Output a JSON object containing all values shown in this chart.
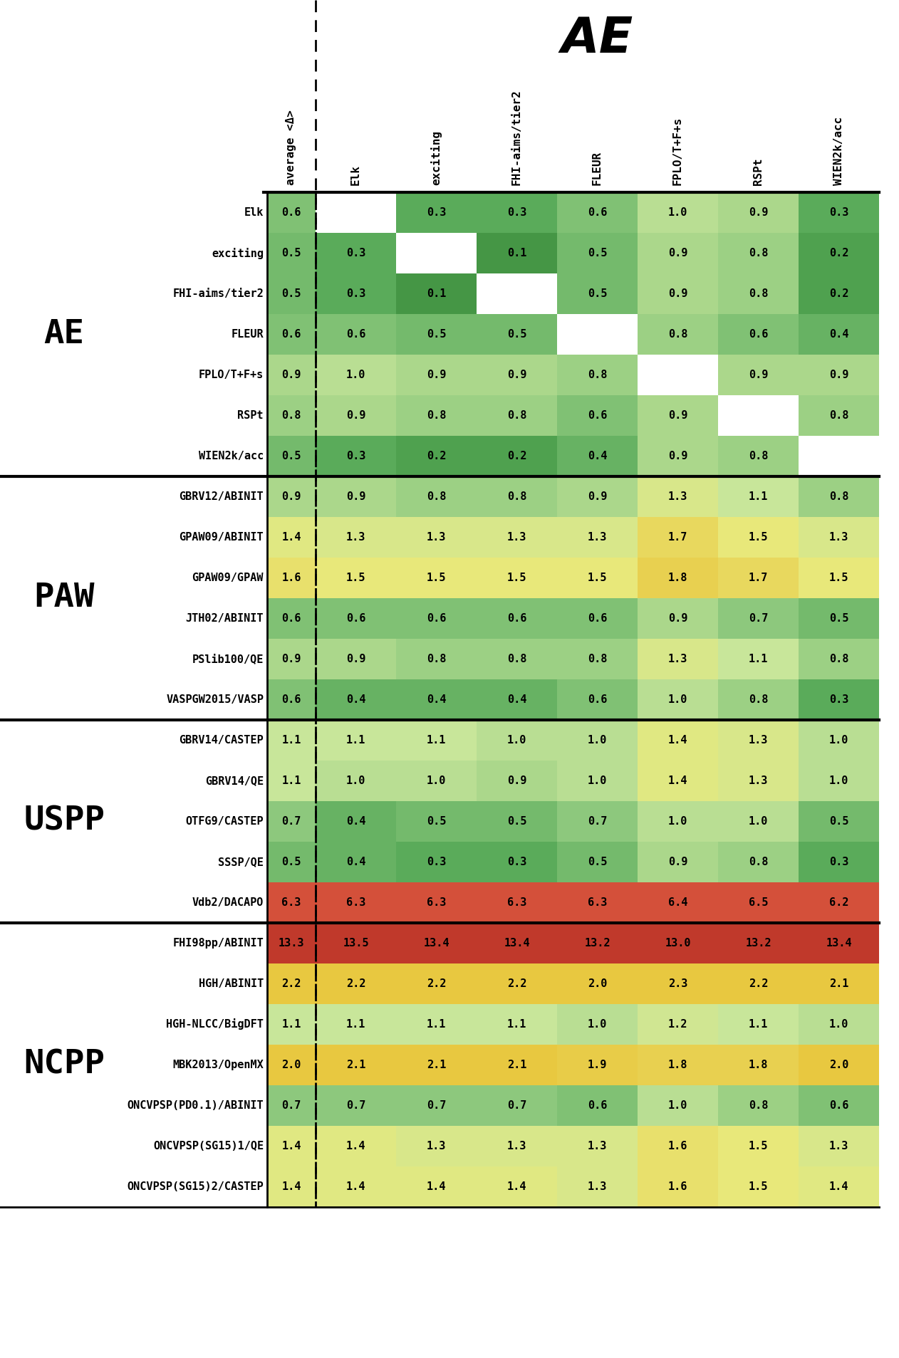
{
  "col_headers": [
    "average <Δ>",
    "Elk",
    "exciting",
    "FHI-aims/tier2",
    "FLEUR",
    "FPLO/T+F+s",
    "RSPt",
    "WIEN2k/acc"
  ],
  "ae_label": "AE",
  "row_groups": [
    {
      "group_label": "AE",
      "rows": [
        {
          "label": "Elk",
          "avg": 0.6,
          "vals": [
            null,
            0.3,
            0.3,
            0.6,
            1.0,
            0.9,
            0.3
          ]
        },
        {
          "label": "exciting",
          "avg": 0.5,
          "vals": [
            0.3,
            null,
            0.1,
            0.5,
            0.9,
            0.8,
            0.2
          ]
        },
        {
          "label": "FHI-aims/tier2",
          "avg": 0.5,
          "vals": [
            0.3,
            0.1,
            null,
            0.5,
            0.9,
            0.8,
            0.2
          ]
        },
        {
          "label": "FLEUR",
          "avg": 0.6,
          "vals": [
            0.6,
            0.5,
            0.5,
            null,
            0.8,
            0.6,
            0.4
          ]
        },
        {
          "label": "FPLO/T+F+s",
          "avg": 0.9,
          "vals": [
            1.0,
            0.9,
            0.9,
            0.8,
            null,
            0.9,
            0.9
          ]
        },
        {
          "label": "RSPt",
          "avg": 0.8,
          "vals": [
            0.9,
            0.8,
            0.8,
            0.6,
            0.9,
            null,
            0.8
          ]
        },
        {
          "label": "WIEN2k/acc",
          "avg": 0.5,
          "vals": [
            0.3,
            0.2,
            0.2,
            0.4,
            0.9,
            0.8,
            null
          ]
        }
      ]
    },
    {
      "group_label": "PAW",
      "rows": [
        {
          "label": "GBRV12/ABINIT",
          "avg": 0.9,
          "vals": [
            0.9,
            0.8,
            0.8,
            0.9,
            1.3,
            1.1,
            0.8
          ]
        },
        {
          "label": "GPAW09/ABINIT",
          "avg": 1.4,
          "vals": [
            1.3,
            1.3,
            1.3,
            1.3,
            1.7,
            1.5,
            1.3
          ]
        },
        {
          "label": "GPAW09/GPAW",
          "avg": 1.6,
          "vals": [
            1.5,
            1.5,
            1.5,
            1.5,
            1.8,
            1.7,
            1.5
          ]
        },
        {
          "label": "JTH02/ABINIT",
          "avg": 0.6,
          "vals": [
            0.6,
            0.6,
            0.6,
            0.6,
            0.9,
            0.7,
            0.5
          ]
        },
        {
          "label": "PSlib100/QE",
          "avg": 0.9,
          "vals": [
            0.9,
            0.8,
            0.8,
            0.8,
            1.3,
            1.1,
            0.8
          ]
        },
        {
          "label": "VASPGW2015/VASP",
          "avg": 0.6,
          "vals": [
            0.4,
            0.4,
            0.4,
            0.6,
            1.0,
            0.8,
            0.3
          ]
        }
      ]
    },
    {
      "group_label": "USPP",
      "rows": [
        {
          "label": "GBRV14/CASTEP",
          "avg": 1.1,
          "vals": [
            1.1,
            1.1,
            1.0,
            1.0,
            1.4,
            1.3,
            1.0
          ]
        },
        {
          "label": "GBRV14/QE",
          "avg": 1.1,
          "vals": [
            1.0,
            1.0,
            0.9,
            1.0,
            1.4,
            1.3,
            1.0
          ]
        },
        {
          "label": "OTFG9/CASTEP",
          "avg": 0.7,
          "vals": [
            0.4,
            0.5,
            0.5,
            0.7,
            1.0,
            1.0,
            0.5
          ]
        },
        {
          "label": "SSSP/QE",
          "avg": 0.5,
          "vals": [
            0.4,
            0.3,
            0.3,
            0.5,
            0.9,
            0.8,
            0.3
          ]
        },
        {
          "label": "Vdb2/DACAPO",
          "avg": 6.3,
          "vals": [
            6.3,
            6.3,
            6.3,
            6.3,
            6.4,
            6.5,
            6.2
          ]
        }
      ]
    },
    {
      "group_label": "NCPP",
      "rows": [
        {
          "label": "FHI98pp/ABINIT",
          "avg": 13.3,
          "vals": [
            13.5,
            13.4,
            13.4,
            13.2,
            13.0,
            13.2,
            13.4
          ]
        },
        {
          "label": "HGH/ABINIT",
          "avg": 2.2,
          "vals": [
            2.2,
            2.2,
            2.2,
            2.0,
            2.3,
            2.2,
            2.1
          ]
        },
        {
          "label": "HGH-NLCC/BigDFT",
          "avg": 1.1,
          "vals": [
            1.1,
            1.1,
            1.1,
            1.0,
            1.2,
            1.1,
            1.0
          ]
        },
        {
          "label": "MBK2013/OpenMX",
          "avg": 2.0,
          "vals": [
            2.1,
            2.1,
            2.1,
            1.9,
            1.8,
            1.8,
            2.0
          ]
        },
        {
          "label": "ONCVPSP(PD0.1)/ABINIT",
          "avg": 0.7,
          "vals": [
            0.7,
            0.7,
            0.7,
            0.6,
            1.0,
            0.8,
            0.6
          ]
        },
        {
          "label": "ONCVPSP(SG15)1/QE",
          "avg": 1.4,
          "vals": [
            1.4,
            1.3,
            1.3,
            1.3,
            1.6,
            1.5,
            1.3
          ]
        },
        {
          "label": "ONCVPSP(SG15)2/CASTEP",
          "avg": 1.4,
          "vals": [
            1.4,
            1.4,
            1.4,
            1.3,
            1.6,
            1.5,
            1.4
          ]
        }
      ]
    }
  ]
}
